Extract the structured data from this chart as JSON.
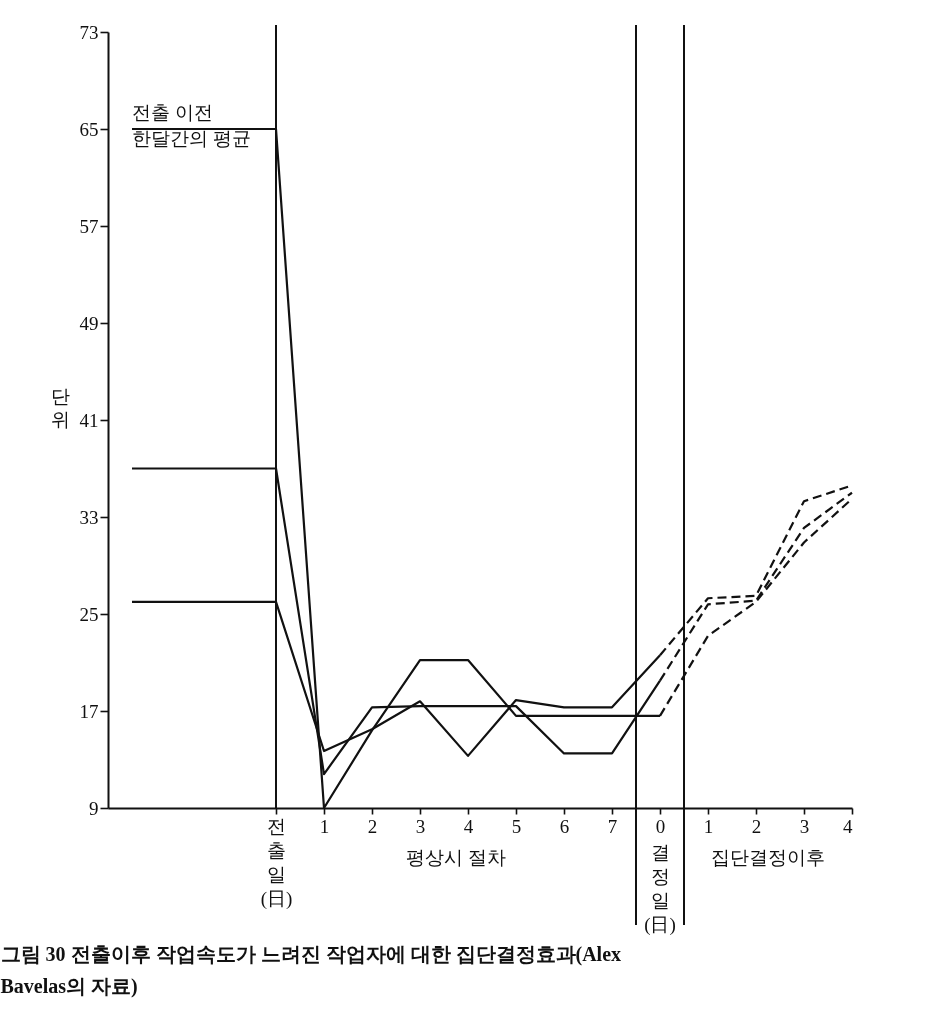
{
  "chart_data": {
    "type": "line",
    "title": "그림 30 전출이후 작업속도가 느려진 작업자에 대한 집단결정효과(Alex Bavelas의 자료)",
    "ylabel": "단위",
    "categories": [
      null,
      null,
      null,
      "전출일(日)",
      "1",
      "2",
      "3",
      "4",
      "5",
      "6",
      "7",
      "0",
      "1",
      "2",
      "3",
      "4"
    ],
    "ylim": [
      9,
      73
    ],
    "yticks": [
      9,
      17,
      25,
      33,
      41,
      49,
      57,
      65,
      73
    ],
    "series": [
      {
        "color": "#111111",
        "line_style": "solid",
        "values": [
          26,
          26,
          26,
          26,
          13.7,
          15.5,
          17.8,
          13.3,
          17.9,
          17.3,
          17.3,
          21.6,
          null,
          null,
          null,
          null
        ]
      },
      {
        "color": "#111111",
        "line_style": "solid",
        "values": [
          37,
          37,
          37,
          37,
          11.8,
          17.3,
          17.4,
          17.4,
          17.4,
          13.5,
          13.5,
          19.5,
          null,
          null,
          null,
          null
        ]
      },
      {
        "color": "#111111",
        "line_style": "solid",
        "values": [
          65,
          65,
          65,
          65,
          9,
          15.4,
          21.2,
          21.2,
          16.6,
          16.6,
          16.6,
          16.6,
          null,
          null,
          null,
          null
        ]
      },
      {
        "color": "#111111",
        "line_style": "dashed",
        "values": [
          null,
          null,
          null,
          null,
          null,
          null,
          null,
          null,
          null,
          null,
          null,
          21.6,
          26.3,
          26.5,
          34.3,
          35.6
        ]
      },
      {
        "color": "#111111",
        "line_style": "dashed",
        "values": [
          null,
          null,
          null,
          null,
          null,
          null,
          null,
          null,
          null,
          null,
          null,
          19.5,
          25.8,
          26.1,
          32.1,
          35.0
        ]
      },
      {
        "color": "#111111",
        "line_style": "dashed",
        "values": [
          null,
          null,
          null,
          null,
          null,
          null,
          null,
          null,
          null,
          null,
          null,
          16.6,
          23.2,
          26.0,
          30.9,
          34.5
        ]
      }
    ],
    "ref_lines": [
      {
        "axis": "x",
        "value": "전출일(日)"
      }
    ],
    "bands": [
      {
        "axis": "x",
        "from": "0",
        "to": "0",
        "label": "결정일(日)",
        "color": "#ffffff"
      }
    ],
    "annotations": [
      {
        "text": "전출 이전\n한달간의 평균",
        "y": 65
      },
      "평상시 절차",
      "집단결정이후"
    ]
  }
}
